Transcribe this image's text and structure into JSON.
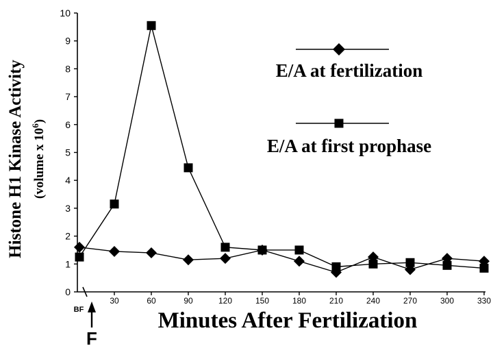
{
  "chart_data": {
    "type": "line",
    "xlabel": "Minutes After Fertilization",
    "ylabel": "Histone H1 Kinase Activity",
    "ylabel_unit": "(volume x 10",
    "ylabel_unit_exp": "6",
    "ylabel_unit_close": ")",
    "ylim": [
      0,
      10
    ],
    "yticks": [
      "0",
      "1",
      "2",
      "3",
      "4",
      "5",
      "6",
      "7",
      "8",
      "9",
      "10"
    ],
    "x": [
      "BF",
      30,
      60,
      90,
      120,
      150,
      180,
      210,
      240,
      270,
      300,
      330
    ],
    "xtick_labels": [
      "BF",
      "30",
      "60",
      "90",
      "120",
      "150",
      "180",
      "210",
      "240",
      "270",
      "300",
      "330"
    ],
    "fertilization_marker": "F",
    "grid": false,
    "legend_position": "top-right",
    "series": [
      {
        "name": "E/A at fertilization",
        "marker": "diamond",
        "values": [
          1.6,
          1.45,
          1.4,
          1.15,
          1.2,
          1.5,
          1.1,
          0.7,
          1.25,
          0.8,
          1.2,
          1.1
        ]
      },
      {
        "name": "E/A at first prophase",
        "marker": "square",
        "values": [
          1.25,
          3.15,
          9.55,
          4.45,
          1.6,
          1.5,
          1.5,
          0.9,
          1.0,
          1.05,
          0.95,
          0.85
        ]
      }
    ]
  }
}
